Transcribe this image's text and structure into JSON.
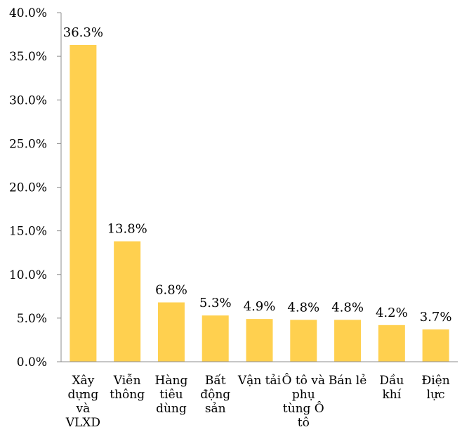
{
  "chart_data": {
    "type": "bar",
    "categories": [
      "Xây dựng và VLXD",
      "Viễn thông",
      "Hàng tiêu dùng",
      "Bất động sản",
      "Vận tải",
      "Ô tô và phụ tùng Ô tô",
      "Bán lẻ",
      "Dầu khí",
      "Điện lực"
    ],
    "category_lines": [
      [
        "Xây",
        "dựng",
        "và",
        "VLXD"
      ],
      [
        "Viễn",
        "thông"
      ],
      [
        "Hàng",
        "tiêu",
        "dùng"
      ],
      [
        "Bất",
        "động",
        "sản"
      ],
      [
        "Vận tải"
      ],
      [
        "Ô tô và",
        "phụ",
        "tùng Ô",
        "tô"
      ],
      [
        "Bán lẻ"
      ],
      [
        "Dầu",
        "khí"
      ],
      [
        "Điện",
        "lực"
      ]
    ],
    "values": [
      36.3,
      13.8,
      6.8,
      5.3,
      4.9,
      4.8,
      4.8,
      4.2,
      3.7
    ],
    "data_labels": [
      "36.3%",
      "13.8%",
      "6.8%",
      "5.3%",
      "4.9%",
      "4.8%",
      "4.8%",
      "4.2%",
      "3.7%"
    ],
    "y_ticks": [
      0,
      5,
      10,
      15,
      20,
      25,
      30,
      35,
      40
    ],
    "y_tick_labels": [
      "0.0%",
      "5.0%",
      "10.0%",
      "15.0%",
      "20.0%",
      "25.0%",
      "30.0%",
      "35.0%",
      "40.0%"
    ],
    "ylim": [
      0,
      40
    ],
    "bar_color": "#FFD04F",
    "axis_color": "#8C8C8C",
    "grid": false,
    "legend": "none"
  }
}
